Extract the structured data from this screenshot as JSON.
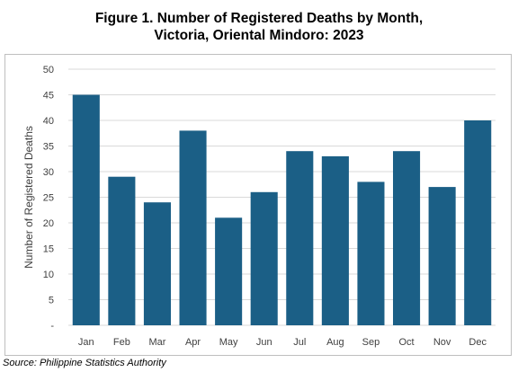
{
  "title": {
    "line1": "Figure 1. Number of Registered Deaths by Month,",
    "line2": "Victoria, Oriental Mindoro: 2023"
  },
  "source": "Source: Philippine Statistics Authority",
  "chart_data": {
    "type": "bar",
    "title": "Figure 1. Number of Registered Deaths by Month, Victoria, Oriental Mindoro: 2023",
    "xlabel": "",
    "ylabel": "Number of Registered Deaths",
    "categories": [
      "Jan",
      "Feb",
      "Mar",
      "Apr",
      "May",
      "Jun",
      "Jul",
      "Aug",
      "Sep",
      "Oct",
      "Nov",
      "Dec"
    ],
    "values": [
      45,
      29,
      24,
      38,
      21,
      26,
      34,
      33,
      28,
      34,
      27,
      40
    ],
    "ylim": [
      0,
      50
    ],
    "yticks": [
      0,
      5,
      10,
      15,
      20,
      25,
      30,
      35,
      40,
      45,
      50
    ],
    "ytick_labels": [
      "-",
      "5",
      "10",
      "15",
      "20",
      "25",
      "30",
      "35",
      "40",
      "45",
      "50"
    ],
    "grid": "horizontal",
    "legend": "none",
    "bar_color": "#1b5f86",
    "grid_color": "#d9d9d9"
  }
}
